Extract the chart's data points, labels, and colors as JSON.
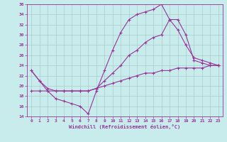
{
  "xlabel": "Windchill (Refroidissement éolien,°C)",
  "xlim": [
    -0.5,
    23.5
  ],
  "ylim": [
    14,
    36
  ],
  "yticks": [
    14,
    16,
    18,
    20,
    22,
    24,
    26,
    28,
    30,
    32,
    34,
    36
  ],
  "xticks": [
    0,
    1,
    2,
    3,
    4,
    5,
    6,
    7,
    8,
    9,
    10,
    11,
    12,
    13,
    14,
    15,
    16,
    17,
    18,
    19,
    20,
    21,
    22,
    23
  ],
  "background_color": "#c8ecec",
  "line_color": "#993399",
  "grid_color": "#aacccc",
  "curve1_x": [
    0,
    1,
    2,
    3,
    4,
    5,
    6,
    7,
    8,
    9,
    10,
    11,
    12,
    13,
    14,
    15,
    16,
    17,
    18,
    19,
    20,
    21,
    22,
    23
  ],
  "curve1_y": [
    23,
    21,
    19,
    17.5,
    17,
    16.5,
    16,
    14.5,
    19,
    23,
    27,
    30.5,
    33,
    34,
    34.5,
    35,
    36,
    33,
    33,
    30,
    25,
    24.5,
    24,
    24
  ],
  "curve2_x": [
    0,
    1,
    2,
    3,
    4,
    5,
    6,
    7,
    8,
    9,
    10,
    11,
    12,
    13,
    14,
    15,
    16,
    17,
    18,
    19,
    20,
    21,
    22,
    23
  ],
  "curve2_y": [
    23,
    21,
    19.5,
    19,
    19,
    19,
    19,
    19,
    19.5,
    21,
    22.5,
    24,
    26,
    27,
    28.5,
    29.5,
    30,
    33,
    31,
    28,
    25.5,
    25,
    24.5,
    24
  ],
  "curve3_x": [
    0,
    1,
    2,
    3,
    4,
    5,
    6,
    7,
    8,
    9,
    10,
    11,
    12,
    13,
    14,
    15,
    16,
    17,
    18,
    19,
    20,
    21,
    22,
    23
  ],
  "curve3_y": [
    19,
    19,
    19,
    19,
    19,
    19,
    19,
    19,
    19.5,
    20,
    20.5,
    21,
    21.5,
    22,
    22.5,
    22.5,
    23,
    23,
    23.5,
    23.5,
    23.5,
    23.5,
    24,
    24
  ],
  "marker": "+",
  "markersize": 3,
  "linewidth": 0.8
}
